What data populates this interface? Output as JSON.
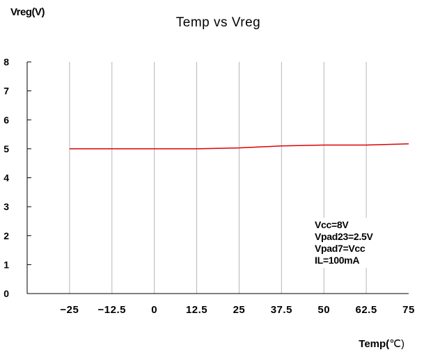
{
  "chart_data": {
    "type": "line",
    "title": "Temp vs Vreg",
    "ylabel": "Vreg(V)",
    "xlabel_main": "Temp(",
    "xlabel_unit": "℃)",
    "x": [
      -25,
      -12.5,
      0,
      12.5,
      25,
      37.5,
      50,
      62.5,
      75
    ],
    "x_tick_labels": [
      "-25",
      "-12.5",
      "0",
      "12.5",
      "25",
      "37.5",
      "50",
      "62.5",
      "75"
    ],
    "xlim": [
      -37.5,
      75
    ],
    "ylim": [
      0,
      8
    ],
    "y_ticks": [
      0,
      1,
      2,
      3,
      4,
      5,
      6,
      7,
      8
    ],
    "series": [
      {
        "color": "#dd0000",
        "values": [
          5.0,
          5.0,
          5.0,
          5.0,
          5.03,
          5.1,
          5.13,
          5.13,
          5.17
        ]
      }
    ],
    "grid": "vertical",
    "annotation": [
      "Vcc=8V",
      "Vpad23=2.5V",
      "Vpad7=Vcc",
      "IL=100mA"
    ]
  }
}
